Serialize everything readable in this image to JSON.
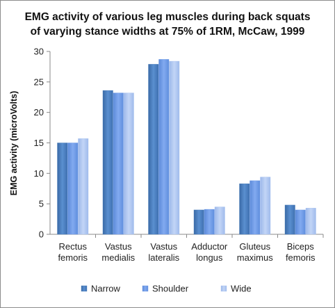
{
  "chart_data": {
    "type": "bar",
    "title_lines": [
      "EMG activity of various leg muscles during back squats",
      "of varying stance widths at 75% of 1RM, McCaw, 1999"
    ],
    "xlabel": "",
    "ylabel": "EMG activity (microVolts)",
    "ylim": [
      0,
      30
    ],
    "yticks": [
      0,
      5,
      10,
      15,
      20,
      25,
      30
    ],
    "categories": [
      [
        "Rectus",
        "femoris"
      ],
      [
        "Vastus",
        "medialis"
      ],
      [
        "Vastus",
        "lateralis"
      ],
      [
        "Adductor",
        "longus"
      ],
      [
        "Gluteus",
        "maximus"
      ],
      [
        "Biceps",
        "femoris"
      ]
    ],
    "series": [
      {
        "name": "Narrow",
        "color": "#4a7ebb",
        "values": [
          15.0,
          23.6,
          27.9,
          4.0,
          8.3,
          4.8
        ]
      },
      {
        "name": "Shoulder",
        "color": "#6e9ae6",
        "values": [
          15.0,
          23.2,
          28.7,
          4.1,
          8.8,
          4.0
        ]
      },
      {
        "name": "Wide",
        "color": "#a9c2ef",
        "values": [
          15.7,
          23.2,
          28.4,
          4.5,
          9.4,
          4.3
        ]
      }
    ],
    "grid": false,
    "legend_position": "bottom"
  }
}
